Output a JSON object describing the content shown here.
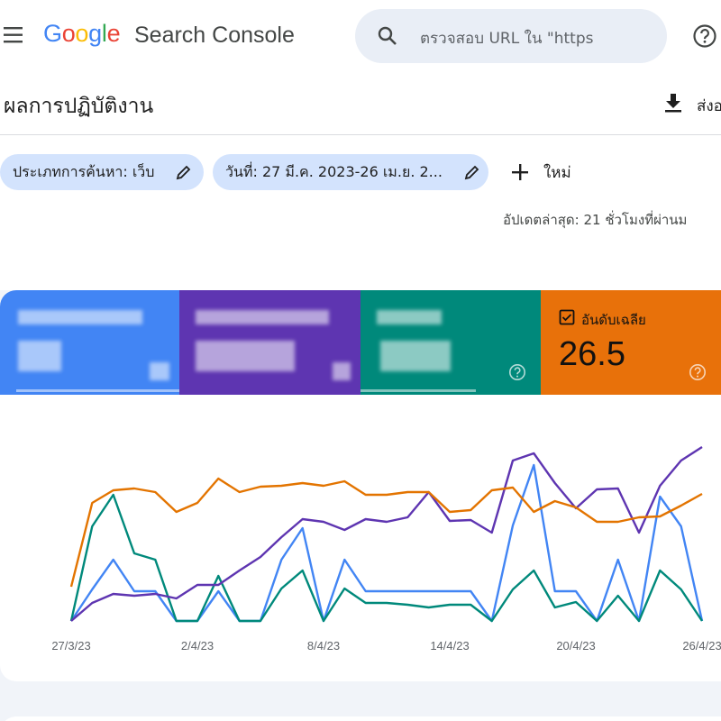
{
  "header": {
    "logo": "Google",
    "product": "Search Console",
    "search_placeholder": "ตรวจสอบ URL ใน \"https"
  },
  "page": {
    "title": "ผลการปฏิบัติงาน",
    "export": "ส่งอ",
    "updated": "อัปเดตล่าสุด: 21 ชั่วโมงที่ผ่านม"
  },
  "filters": {
    "search_type": "ประเภทการค้นหา: เว็บ",
    "date": "วันที่: 27 มี.ค. 2023-26 เม.ย. 2...",
    "new": "ใหม่"
  },
  "cards": {
    "position_label": "อันดับเฉลีย",
    "position_value": "26.5"
  },
  "chart_data": {
    "type": "line",
    "categories": [
      "27/3/23",
      null,
      null,
      null,
      null,
      null,
      "2/4/23",
      null,
      null,
      null,
      null,
      null,
      "8/4/23",
      null,
      null,
      null,
      null,
      null,
      "14/4/23",
      null,
      null,
      null,
      null,
      null,
      "20/4/23",
      null,
      null,
      null,
      null,
      null,
      "26/4/23"
    ],
    "ylim": [
      0,
      100
    ],
    "series": [
      {
        "color": "#4285f4",
        "values": [
          0,
          17.5,
          34,
          16.5,
          16.5,
          0,
          0,
          16.5,
          0,
          0,
          34,
          51.5,
          0,
          34,
          16.5,
          16.5,
          16.5,
          16.5,
          16.5,
          16.5,
          0,
          53,
          86.5,
          16.5,
          16.5,
          0,
          34,
          0,
          69,
          52.5,
          0
        ]
      },
      {
        "color": "#00897b",
        "values": [
          0,
          52.5,
          70,
          37.5,
          34,
          0,
          0,
          25,
          0,
          0,
          18,
          28,
          0,
          18,
          10,
          10,
          9,
          7.5,
          9,
          9,
          0,
          17.5,
          28,
          7.5,
          10.5,
          0,
          14,
          0,
          28,
          17.5,
          0
        ]
      },
      {
        "color": "#5e35b1",
        "values": [
          0,
          10,
          15,
          14,
          15,
          12.5,
          20,
          20,
          28,
          35.5,
          46.5,
          56.5,
          55,
          50.5,
          56.5,
          55,
          57.5,
          71.5,
          55.5,
          56,
          49,
          89,
          93,
          76.5,
          62.5,
          73,
          73.5,
          49,
          75,
          89,
          96.5
        ]
      },
      {
        "color": "#e37400",
        "values": [
          19,
          65.5,
          72.5,
          73.5,
          71.5,
          60.5,
          65.5,
          79,
          71.5,
          74.5,
          75,
          76.5,
          75,
          77.5,
          70,
          70,
          71.5,
          71.5,
          60.5,
          61.5,
          72.5,
          74,
          60.5,
          66.5,
          63,
          55,
          55,
          57.5,
          58,
          64,
          70.5
        ]
      }
    ]
  }
}
